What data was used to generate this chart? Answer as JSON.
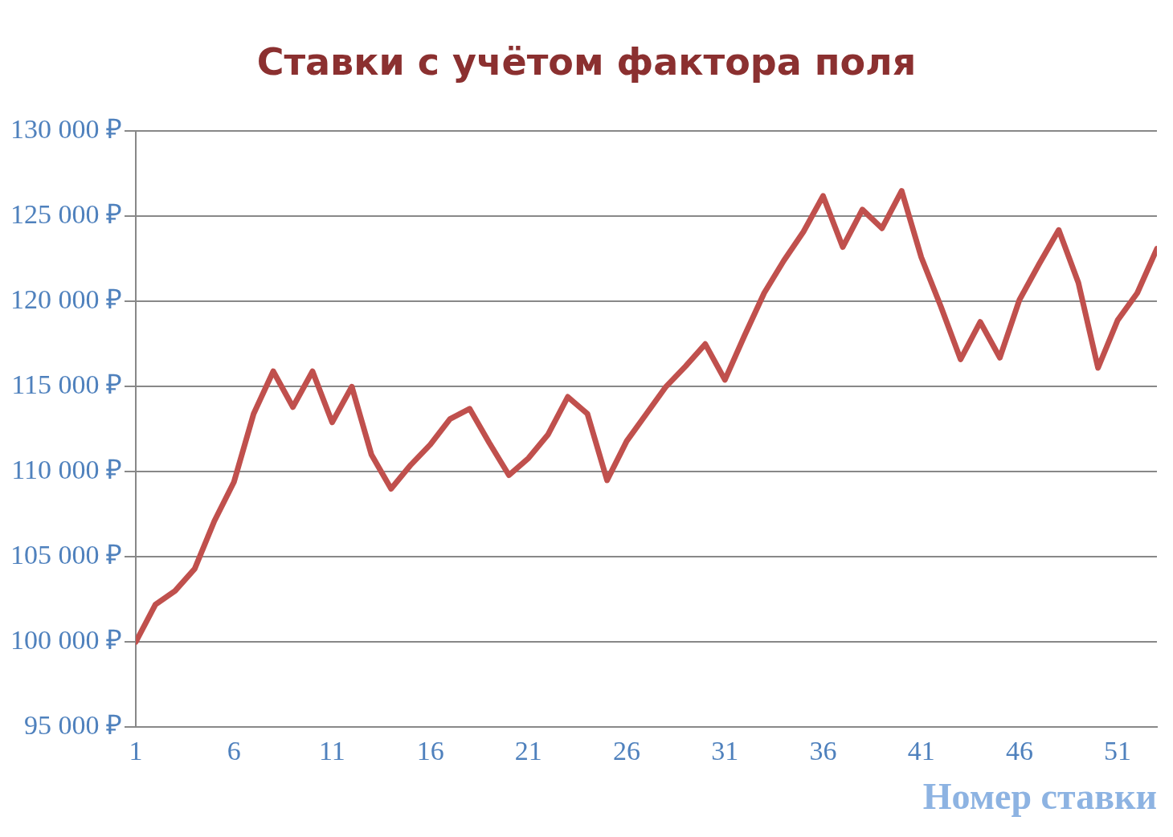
{
  "chart_data": {
    "type": "line",
    "title": "Ставки с учётом фактора поля",
    "xlabel": "Номер ставки",
    "x": [
      1,
      2,
      3,
      4,
      5,
      6,
      7,
      8,
      9,
      10,
      11,
      12,
      13,
      14,
      15,
      16,
      17,
      18,
      19,
      20,
      21,
      22,
      23,
      24,
      25,
      26,
      27,
      28,
      29,
      30,
      31,
      32,
      33,
      34,
      35,
      36,
      37,
      38,
      39,
      40,
      41,
      42,
      43,
      44,
      45,
      46,
      47,
      48,
      49,
      50,
      51,
      52,
      53
    ],
    "values": [
      100000,
      102200,
      103000,
      104300,
      107100,
      109400,
      113400,
      115900,
      113800,
      115900,
      112900,
      115000,
      111000,
      109000,
      110400,
      111600,
      113100,
      113700,
      111700,
      109800,
      110800,
      112200,
      114400,
      113400,
      109500,
      111800,
      113400,
      115000,
      116200,
      117500,
      115400,
      118000,
      120500,
      122400,
      124100,
      126200,
      123200,
      125400,
      124300,
      126500,
      122600,
      119700,
      116600,
      118800,
      116700,
      120100,
      122200,
      124200,
      121100,
      116100,
      118900,
      120500,
      123100
    ],
    "color": "#c0504d",
    "xlim": [
      1,
      53
    ],
    "xticks": [
      1,
      6,
      11,
      16,
      21,
      26,
      31,
      36,
      41,
      46,
      51
    ],
    "ylim": [
      95000,
      130000
    ],
    "yticks": [
      {
        "value": 95000,
        "label": "95 000 ₽"
      },
      {
        "value": 100000,
        "label": "100 000 ₽"
      },
      {
        "value": 105000,
        "label": "105 000 ₽"
      },
      {
        "value": 110000,
        "label": "110 000 ₽"
      },
      {
        "value": 115000,
        "label": "115 000 ₽"
      },
      {
        "value": 120000,
        "label": "120 000 ₽"
      },
      {
        "value": 125000,
        "label": "125 000 ₽"
      },
      {
        "value": 130000,
        "label": "130 000 ₽"
      }
    ],
    "grid": "y",
    "legend": false,
    "marker": "none",
    "line_style": "solid"
  }
}
